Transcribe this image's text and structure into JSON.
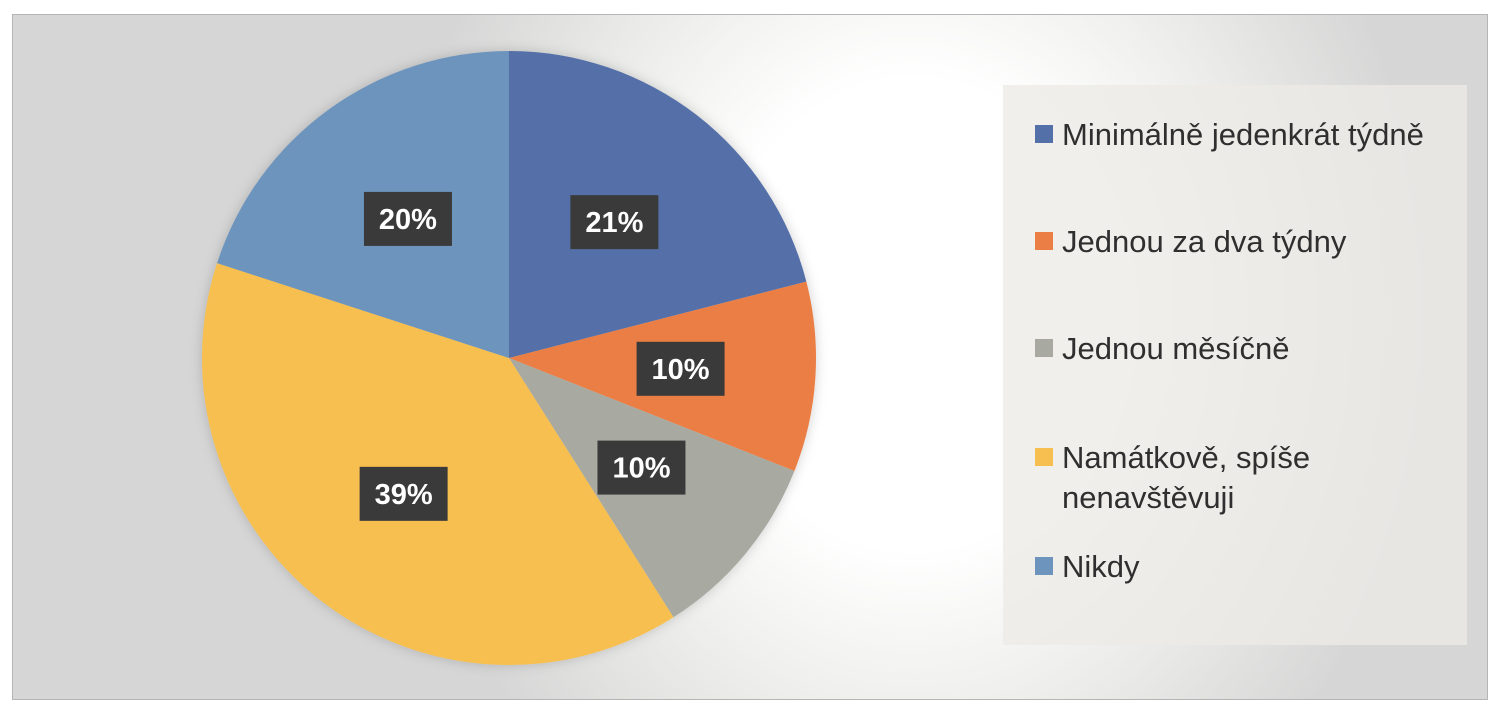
{
  "chart_data": {
    "type": "pie",
    "title": "",
    "categories": [
      "Minimálně jedenkrát týdně",
      "Jednou za dva týdny",
      "Jednou měsíčně",
      "Namátkově, spíše nenavštěvuji",
      "Nikdy"
    ],
    "values": [
      21,
      10,
      10,
      39,
      20
    ],
    "value_labels": [
      "21%",
      "10%",
      "10%",
      "39%",
      "20%"
    ],
    "colors": [
      "#5470a8",
      "#ea7e44",
      "#a8aaa2",
      "#f7bf4f",
      "#6d94bc"
    ],
    "legend": {
      "placement": "right",
      "entries": [
        "Minimálně jedenkrát týdně",
        "Jednou za dva týdny",
        "Jednou měsíčně",
        "Namátkově, spíše nenavštěvuji",
        "Nikdy"
      ]
    }
  }
}
